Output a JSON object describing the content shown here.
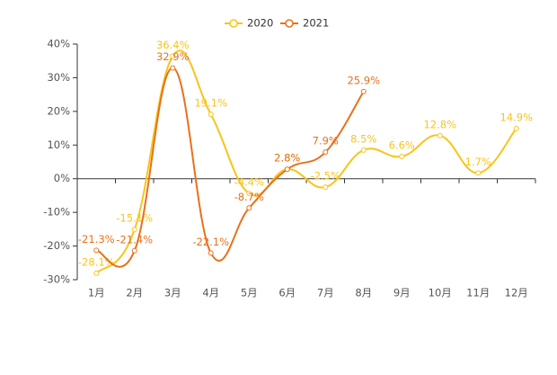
{
  "chart_data": {
    "type": "line",
    "categories": [
      "1月",
      "2月",
      "3月",
      "4月",
      "5月",
      "6月",
      "7月",
      "8月",
      "9月",
      "10月",
      "11月",
      "12月"
    ],
    "series": [
      {
        "name": "2020",
        "color": "#f7c51b",
        "values": [
          -28.1,
          -15.1,
          36.4,
          19.1,
          -4.4,
          2.8,
          -2.5,
          8.5,
          6.6,
          12.8,
          1.7,
          14.9
        ],
        "value_labels": [
          "-28.1%",
          "-15.1%",
          "36.4%",
          "19.1%",
          "-4.4%",
          "2.8%",
          "-2.5%",
          "8.5%",
          "6.6%",
          "12.8%",
          "1.7%",
          "14.9%"
        ]
      },
      {
        "name": "2021",
        "color": "#e8711c",
        "values": [
          -21.3,
          -21.4,
          32.9,
          -22.1,
          -8.7,
          2.8,
          7.9,
          25.9,
          null,
          null,
          null,
          null
        ],
        "value_labels": [
          "-21.3%",
          "-21.4%",
          "32.9%",
          "-22.1%",
          "-8.7%",
          "2.8%",
          "7.9%",
          "25.9%",
          null,
          null,
          null,
          null
        ]
      }
    ],
    "ylim": [
      -30,
      40
    ],
    "yticks": [
      {
        "value": -30,
        "label": "-30%"
      },
      {
        "value": -20,
        "label": "-20%"
      },
      {
        "value": -10,
        "label": "-10%"
      },
      {
        "value": 0,
        "label": "0%"
      },
      {
        "value": 10,
        "label": "10%"
      },
      {
        "value": 20,
        "label": "20%"
      },
      {
        "value": 30,
        "label": "30%"
      },
      {
        "value": 40,
        "label": "40%"
      }
    ],
    "legend": "top"
  }
}
